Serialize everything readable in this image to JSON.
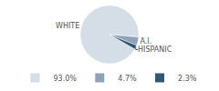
{
  "chart_data": {
    "type": "pie",
    "categories": [
      "WHITE",
      "A.I.",
      "HISPANIC"
    ],
    "values": [
      93.0,
      4.7,
      2.3
    ],
    "value_labels": [
      "93.0%",
      "4.7%",
      "2.3%"
    ],
    "colors": [
      "#d5dde7",
      "#8ea3b8",
      "#2f5a73"
    ],
    "legend": "bottom"
  }
}
